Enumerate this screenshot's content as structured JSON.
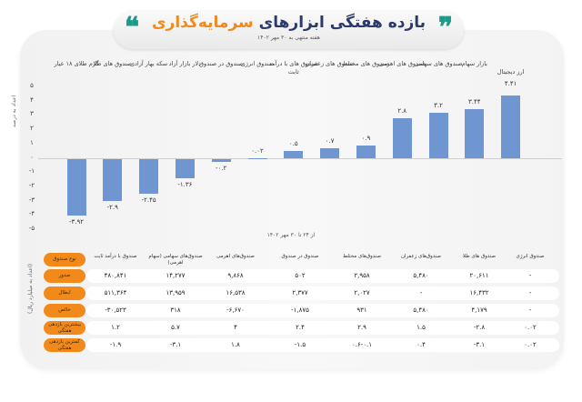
{
  "header": {
    "title_part1": "بازده هفتگی ابزارهای",
    "title_part2": "سرمایه‌گذاری",
    "subtitle": "هفته منتهی به ۳۰ مهر ۱۴۰۲",
    "quote_left": "❝",
    "quote_right": "❞"
  },
  "chart": {
    "y_axis_label": "اعداد به درصد",
    "x_caption": "از ۲۴ تا ۳۰ مهر ۱۴۰۲",
    "yticks": [
      "۵",
      "۴",
      "۳",
      "۲",
      "۱",
      "۰",
      "-۱",
      "-۲",
      "-۳",
      "-۴",
      "-۵"
    ],
    "bars": [
      {
        "label": "گرم طلای ۱۸ عیار",
        "value_text": "-۳.۹۲"
      },
      {
        "label": "صندوق های طلا",
        "value_text": "-۲.۹"
      },
      {
        "label": "سکه بهار آزادی",
        "value_text": "-۲.۴۵"
      },
      {
        "label": "دلار بازار آزاد",
        "value_text": "-۱.۳۶"
      },
      {
        "label": "صندوق در صندوق",
        "value_text": "-۰.۲"
      },
      {
        "label": "صندوق انرژی",
        "value_text": "۰.۰۲"
      },
      {
        "label": "صندوق های با درآمد ثابت",
        "value_text": "۰.۵"
      },
      {
        "label": "صندوق های زعفران",
        "value_text": "۰.۷"
      },
      {
        "label": "صندوق های مختلط",
        "value_text": "۰.۹"
      },
      {
        "label": "صندوق های اهرمی",
        "value_text": "۲.۸"
      },
      {
        "label": "صندوق های سهامی",
        "value_text": "۳.۲"
      },
      {
        "label": "بازار سهام",
        "value_text": "۳.۴۴"
      },
      {
        "label": "ارز دیجیتال",
        "value_text": "۴.۴۱"
      }
    ]
  },
  "chart_data": {
    "type": "bar",
    "title": "بازده هفتگی ابزارهای سرمایه‌گذاری",
    "subtitle": "هفته منتهی به ۳۰ مهر ۱۴۰۲",
    "categories": [
      "گرم طلای ۱۸ عیار",
      "صندوق های طلا",
      "سکه بهار آزادی",
      "دلار بازار آزاد",
      "صندوق در صندوق",
      "صندوق انرژی",
      "صندوق های با درآمد ثابت",
      "صندوق های زعفران",
      "صندوق های مختلط",
      "صندوق های اهرمی",
      "صندوق های سهامی",
      "بازار سهام",
      "ارز دیجیتال"
    ],
    "values": [
      -3.92,
      -2.9,
      -2.45,
      -1.36,
      -0.2,
      0.02,
      0.5,
      0.7,
      0.9,
      2.8,
      3.2,
      3.44,
      4.41
    ],
    "xlabel": "از ۲۴ تا ۳۰ مهر ۱۴۰۲",
    "ylabel": "اعداد به درصد",
    "ylim": [
      -5,
      5
    ],
    "grid": false,
    "bar_color": "#7096d1"
  },
  "table": {
    "y_axis_label": "(اعداد به میلیارد ریال)",
    "row_labels": [
      "نوع صندوق",
      "صدور",
      "ابطال",
      "خالص",
      "بیشترین بازدهی هفتگی",
      "کمترین بازدهی هفتگی"
    ],
    "columns": [
      {
        "name": "صندوق با درآمد ثابت",
        "values": [
          "۴۸۰,۸۴۱",
          "۵۱۱,۳۶۴",
          "-۳۰,۵۲۳",
          "۱.۲",
          "-۱.۹"
        ]
      },
      {
        "name": "صندوق‌های سهامی (سهام اهرمی)",
        "values": [
          "۱۴,۲۷۷",
          "۱۳,۹۵۹",
          "۳۱۸",
          "۵.۷",
          "-۳.۱"
        ]
      },
      {
        "name": "صندوق‌های اهرمی",
        "values": [
          "۹,۸۶۸",
          "۱۶,۵۳۸",
          "-۶,۶۷۰",
          "۴",
          "۱.۸"
        ]
      },
      {
        "name": "صندوق در صندوق",
        "values": [
          "۵۰۲",
          "۲,۳۷۷",
          "-۱,۸۷۵",
          "۲.۴",
          "-۱.۵"
        ]
      },
      {
        "name": "صندوق‌های مختلط",
        "values": [
          "۲,۹۵۸",
          "۲,۰۲۷",
          "۹۳۱",
          "۲.۹",
          "۰.۶-۰.۱"
        ]
      },
      {
        "name": "صندوق‌های زعفران",
        "values": [
          "۵,۴۸۰",
          "-",
          "۵,۴۸۰",
          "۱.۵",
          "۰.۴"
        ]
      },
      {
        "name": "صندوق های طلا",
        "values": [
          "۲۰,۶۱۱",
          "۱۶,۴۳۲",
          "۴,۱۷۹",
          "-۲.۸",
          "-۳.۱"
        ]
      },
      {
        "name": "صندوق انرژی",
        "values": [
          "-",
          "-",
          "-",
          "۰.۰۲",
          "۰.۰۲"
        ]
      }
    ]
  },
  "colors": {
    "accent_orange": "#f28a1b",
    "title_navy": "#2b3a6b",
    "quote_teal": "#1d9b8a",
    "bar_blue": "#7096d1"
  }
}
